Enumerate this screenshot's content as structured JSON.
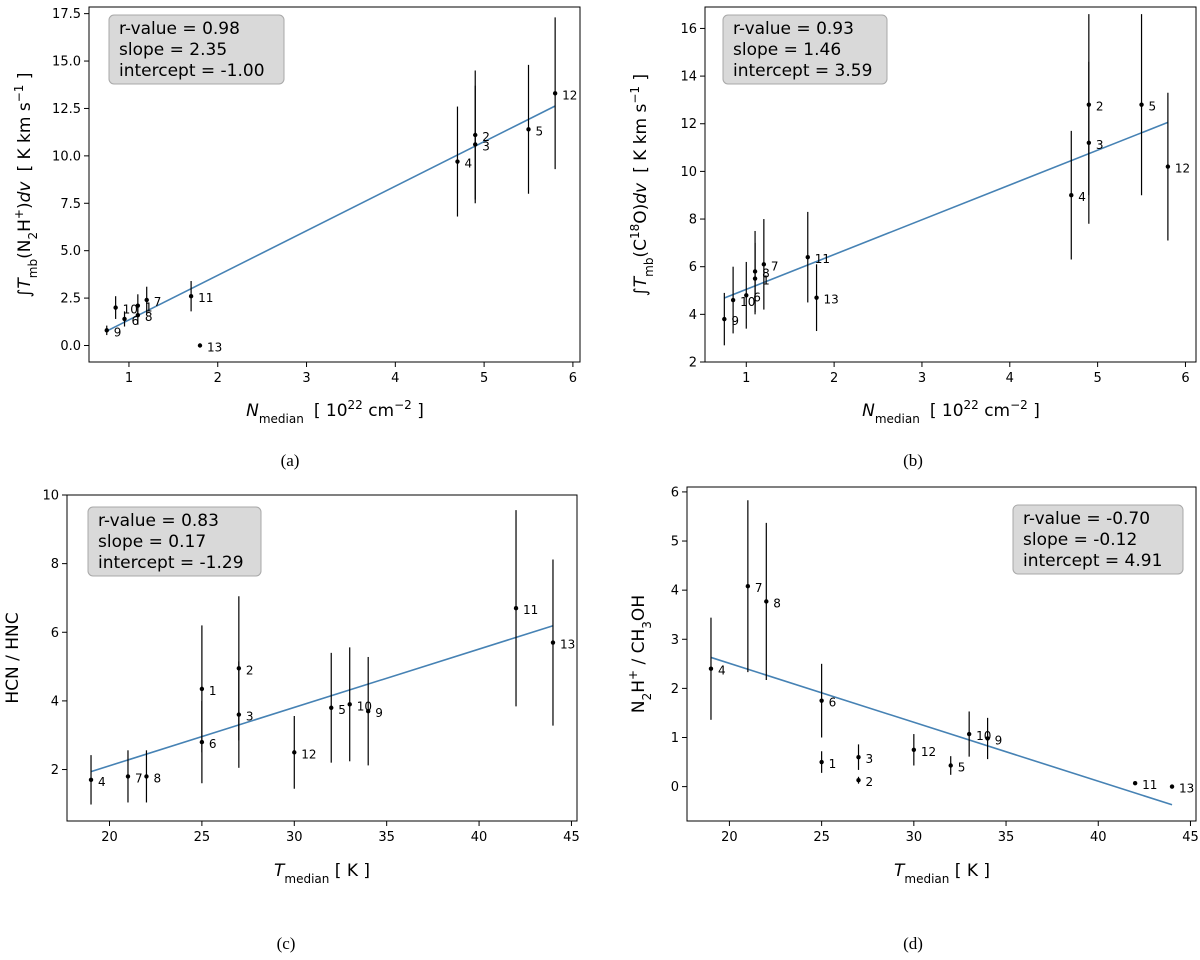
{
  "chart_data": [
    {
      "type": "scatter",
      "panel": "(a)",
      "xlabel": {
        "main": "N",
        "sub": "median",
        "unit_pre": "[ 10",
        "unit_sup": "22",
        "unit_mid": " cm",
        "unit_sup2": "−2",
        "unit_post": " ]"
      },
      "ylabel": "∫T_mb(N2H+)dv [ K km s-1 ]",
      "xlim": [
        0.55,
        6.08
      ],
      "ylim": [
        -0.87,
        17.85
      ],
      "xticks": [
        1,
        2,
        3,
        4,
        5,
        6
      ],
      "xtick_labels": [
        "1",
        "2",
        "3",
        "4",
        "5",
        "6"
      ],
      "yticks": [
        0,
        2.5,
        5,
        7.5,
        10,
        12.5,
        15,
        17.5
      ],
      "ytick_labels": [
        "0.0",
        "2.5",
        "5.0",
        "7.5",
        "10.0",
        "12.5",
        "15.0",
        "17.5"
      ],
      "stats": [
        "r-value =  0.98",
        "slope = 2.35",
        "intercept = -1.00"
      ],
      "stats_position": "top-left",
      "fit": {
        "slope": 2.35,
        "intercept": -1.0,
        "x_range": [
          0.75,
          5.8
        ]
      },
      "points": [
        {
          "label": "1",
          "x": 1.1,
          "y": 2.1,
          "err": 0.6
        },
        {
          "label": "2",
          "x": 4.9,
          "y": 11.1,
          "err": 3.4
        },
        {
          "label": "3",
          "x": 4.9,
          "y": 10.6,
          "err": 3.1
        },
        {
          "label": "4",
          "x": 4.7,
          "y": 9.7,
          "err": 2.9
        },
        {
          "label": "5",
          "x": 5.5,
          "y": 11.4,
          "err": 3.4
        },
        {
          "label": "6",
          "x": 0.95,
          "y": 1.4,
          "err": 0.4
        },
        {
          "label": "7",
          "x": 1.2,
          "y": 2.4,
          "err": 0.7
        },
        {
          "label": "8",
          "x": 1.1,
          "y": 1.6,
          "err": 0.5
        },
        {
          "label": "9",
          "x": 0.75,
          "y": 0.8,
          "err": 0.25
        },
        {
          "label": "10",
          "x": 0.85,
          "y": 2.0,
          "err": 0.6
        },
        {
          "label": "11",
          "x": 1.7,
          "y": 2.6,
          "err": 0.8
        },
        {
          "label": "12",
          "x": 5.8,
          "y": 13.3,
          "err": 4.0
        },
        {
          "label": "13",
          "x": 1.8,
          "y": 0.0,
          "err": 0
        }
      ]
    },
    {
      "type": "scatter",
      "panel": "(b)",
      "xlabel": {
        "main": "N",
        "sub": "median",
        "unit_pre": "[ 10",
        "unit_sup": "22",
        "unit_mid": " cm",
        "unit_sup2": "−2",
        "unit_post": " ]"
      },
      "ylabel": "∫T_mb(C18O)dv [ K km s-1 ]",
      "xlim": [
        0.53,
        6.12
      ],
      "ylim": [
        2.0,
        16.9
      ],
      "xticks": [
        1,
        2,
        3,
        4,
        5,
        6
      ],
      "xtick_labels": [
        "1",
        "2",
        "3",
        "4",
        "5",
        "6"
      ],
      "yticks": [
        2,
        4,
        6,
        8,
        10,
        12,
        14,
        16
      ],
      "ytick_labels": [
        "2",
        "4",
        "6",
        "8",
        "10",
        "12",
        "14",
        "16"
      ],
      "stats": [
        "r-value =  0.93",
        "slope = 1.46",
        "intercept = 3.59"
      ],
      "stats_position": "top-left",
      "fit": {
        "slope": 1.46,
        "intercept": 3.59,
        "x_range": [
          0.75,
          5.8
        ]
      },
      "points": [
        {
          "label": "1",
          "x": 1.1,
          "y": 5.5,
          "err": 1.5
        },
        {
          "label": "2",
          "x": 4.9,
          "y": 12.8,
          "err": 3.8
        },
        {
          "label": "3",
          "x": 4.9,
          "y": 11.2,
          "err": 3.4
        },
        {
          "label": "4",
          "x": 4.7,
          "y": 9.0,
          "err": 2.7
        },
        {
          "label": "5",
          "x": 5.5,
          "y": 12.8,
          "err": 3.8
        },
        {
          "label": "6",
          "x": 1.0,
          "y": 4.8,
          "err": 1.4
        },
        {
          "label": "7",
          "x": 1.2,
          "y": 6.1,
          "err": 1.9
        },
        {
          "label": "8",
          "x": 1.1,
          "y": 5.8,
          "err": 1.7
        },
        {
          "label": "9",
          "x": 0.75,
          "y": 3.8,
          "err": 1.1
        },
        {
          "label": "10",
          "x": 0.85,
          "y": 4.6,
          "err": 1.4
        },
        {
          "label": "11",
          "x": 1.7,
          "y": 6.4,
          "err": 1.9
        },
        {
          "label": "12",
          "x": 5.8,
          "y": 10.2,
          "err": 3.1
        },
        {
          "label": "13",
          "x": 1.8,
          "y": 4.7,
          "err": 1.4
        }
      ]
    },
    {
      "type": "scatter",
      "panel": "(c)",
      "xlabel": {
        "main": "T",
        "sub": "median",
        "unit_post": "  [ K ]"
      },
      "ylabel": "HCN / HNC",
      "xlim": [
        17.7,
        45.3
      ],
      "ylim": [
        0.5,
        10.0
      ],
      "xticks": [
        20,
        25,
        30,
        35,
        40,
        45
      ],
      "xtick_labels": [
        "20",
        "25",
        "30",
        "35",
        "40",
        "45"
      ],
      "yticks": [
        2,
        4,
        6,
        8,
        10
      ],
      "ytick_labels": [
        "2",
        "4",
        "6",
        "8",
        "10"
      ],
      "stats": [
        "r-value =  0.83",
        "slope = 0.17",
        "intercept = -1.29"
      ],
      "stats_position": "top-left",
      "fit": {
        "slope": 0.17,
        "intercept": -1.29,
        "x_range": [
          19,
          44
        ]
      },
      "points": [
        {
          "label": "1",
          "x": 25,
          "y": 4.35,
          "err": 1.85
        },
        {
          "label": "2",
          "x": 27,
          "y": 4.95,
          "err": 2.1
        },
        {
          "label": "3",
          "x": 27,
          "y": 3.6,
          "err": 1.55
        },
        {
          "label": "4",
          "x": 19,
          "y": 1.7,
          "err": 0.72
        },
        {
          "label": "5",
          "x": 32,
          "y": 3.8,
          "err": 1.6
        },
        {
          "label": "6",
          "x": 25,
          "y": 2.8,
          "err": 1.2
        },
        {
          "label": "7",
          "x": 21,
          "y": 1.8,
          "err": 0.76
        },
        {
          "label": "8",
          "x": 22,
          "y": 1.8,
          "err": 0.76
        },
        {
          "label": "9",
          "x": 34,
          "y": 3.7,
          "err": 1.58
        },
        {
          "label": "10",
          "x": 33,
          "y": 3.9,
          "err": 1.66
        },
        {
          "label": "11",
          "x": 42,
          "y": 6.7,
          "err": 2.86
        },
        {
          "label": "12",
          "x": 30,
          "y": 2.5,
          "err": 1.06
        },
        {
          "label": "13",
          "x": 44,
          "y": 5.7,
          "err": 2.42
        }
      ]
    },
    {
      "type": "scatter",
      "panel": "(d)",
      "xlabel": {
        "main": "T",
        "sub": "median",
        "unit_post": "  [ K ]"
      },
      "ylabel": "N2H+ / CH3OH",
      "xlim": [
        17.7,
        45.3
      ],
      "ylim": [
        -0.7,
        6.1
      ],
      "xticks": [
        20,
        25,
        30,
        35,
        40,
        45
      ],
      "xtick_labels": [
        "20",
        "25",
        "30",
        "35",
        "40",
        "45"
      ],
      "yticks": [
        0,
        1,
        2,
        3,
        4,
        5,
        6
      ],
      "ytick_labels": [
        "0",
        "1",
        "2",
        "3",
        "4",
        "5",
        "6"
      ],
      "stats": [
        "r-value =  -0.70",
        "slope = -0.12",
        "intercept = 4.91"
      ],
      "stats_position": "top-right",
      "fit": {
        "slope": -0.12,
        "intercept": 4.91,
        "x_range": [
          19,
          44
        ]
      },
      "points": [
        {
          "label": "1",
          "x": 25,
          "y": 0.5,
          "err": 0.22
        },
        {
          "label": "2",
          "x": 27,
          "y": 0.13,
          "err": 0.07
        },
        {
          "label": "3",
          "x": 27,
          "y": 0.6,
          "err": 0.26
        },
        {
          "label": "4",
          "x": 19,
          "y": 2.4,
          "err": 1.04
        },
        {
          "label": "5",
          "x": 32,
          "y": 0.43,
          "err": 0.19
        },
        {
          "label": "6",
          "x": 25,
          "y": 1.75,
          "err": 0.75
        },
        {
          "label": "7",
          "x": 21,
          "y": 4.08,
          "err": 1.75
        },
        {
          "label": "8",
          "x": 22,
          "y": 3.77,
          "err": 1.6
        },
        {
          "label": "9",
          "x": 34,
          "y": 0.98,
          "err": 0.42
        },
        {
          "label": "10",
          "x": 33,
          "y": 1.07,
          "err": 0.46
        },
        {
          "label": "11",
          "x": 42,
          "y": 0.07,
          "err": 0
        },
        {
          "label": "12",
          "x": 30,
          "y": 0.75,
          "err": 0.32
        },
        {
          "label": "13",
          "x": 44,
          "y": 0.0,
          "err": 0
        }
      ]
    }
  ]
}
